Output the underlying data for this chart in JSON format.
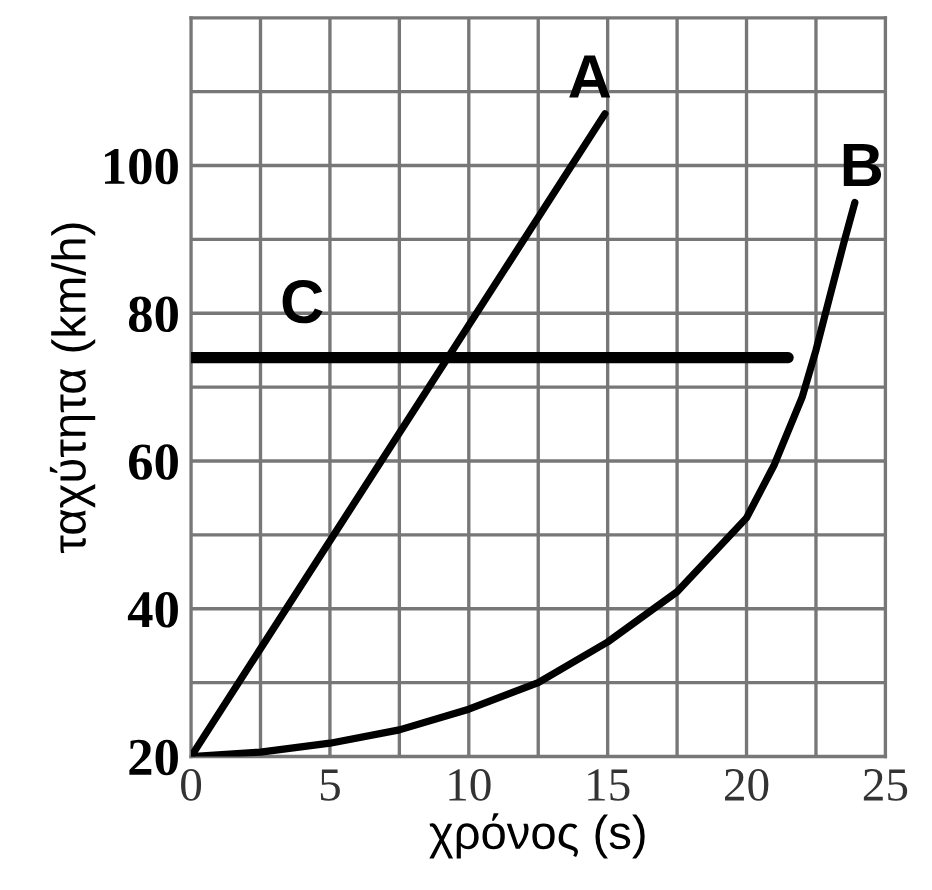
{
  "chart_data": {
    "type": "line",
    "xlabel": "χρόνος (s)",
    "ylabel": "ταχύτητα (km/h)",
    "xlim": [
      0,
      25
    ],
    "ylim": [
      20,
      120
    ],
    "xticks": [
      0,
      5,
      10,
      15,
      20,
      25
    ],
    "yticks": [
      20,
      40,
      60,
      80,
      100
    ],
    "grid": true,
    "legend": false,
    "marker": "none",
    "line_style": "solid",
    "series": [
      {
        "name": "A",
        "color": "#000000",
        "x": [
          0,
          14.9
        ],
        "values": [
          20,
          107
        ]
      },
      {
        "name": "B",
        "color": "#000000",
        "x": [
          0,
          2.5,
          5,
          7.5,
          10,
          12.5,
          15,
          17.5,
          20,
          21,
          22,
          22.5,
          23,
          23.5,
          23.9
        ],
        "values": [
          20,
          20.6,
          21.8,
          23.6,
          26.4,
          30,
          35.5,
          42.3,
          52.3,
          59.5,
          68.6,
          75,
          82.3,
          89.5,
          95
        ]
      },
      {
        "name": "C",
        "color": "#000000",
        "x": [
          0,
          21.5
        ],
        "values": [
          74,
          74
        ]
      }
    ]
  }
}
